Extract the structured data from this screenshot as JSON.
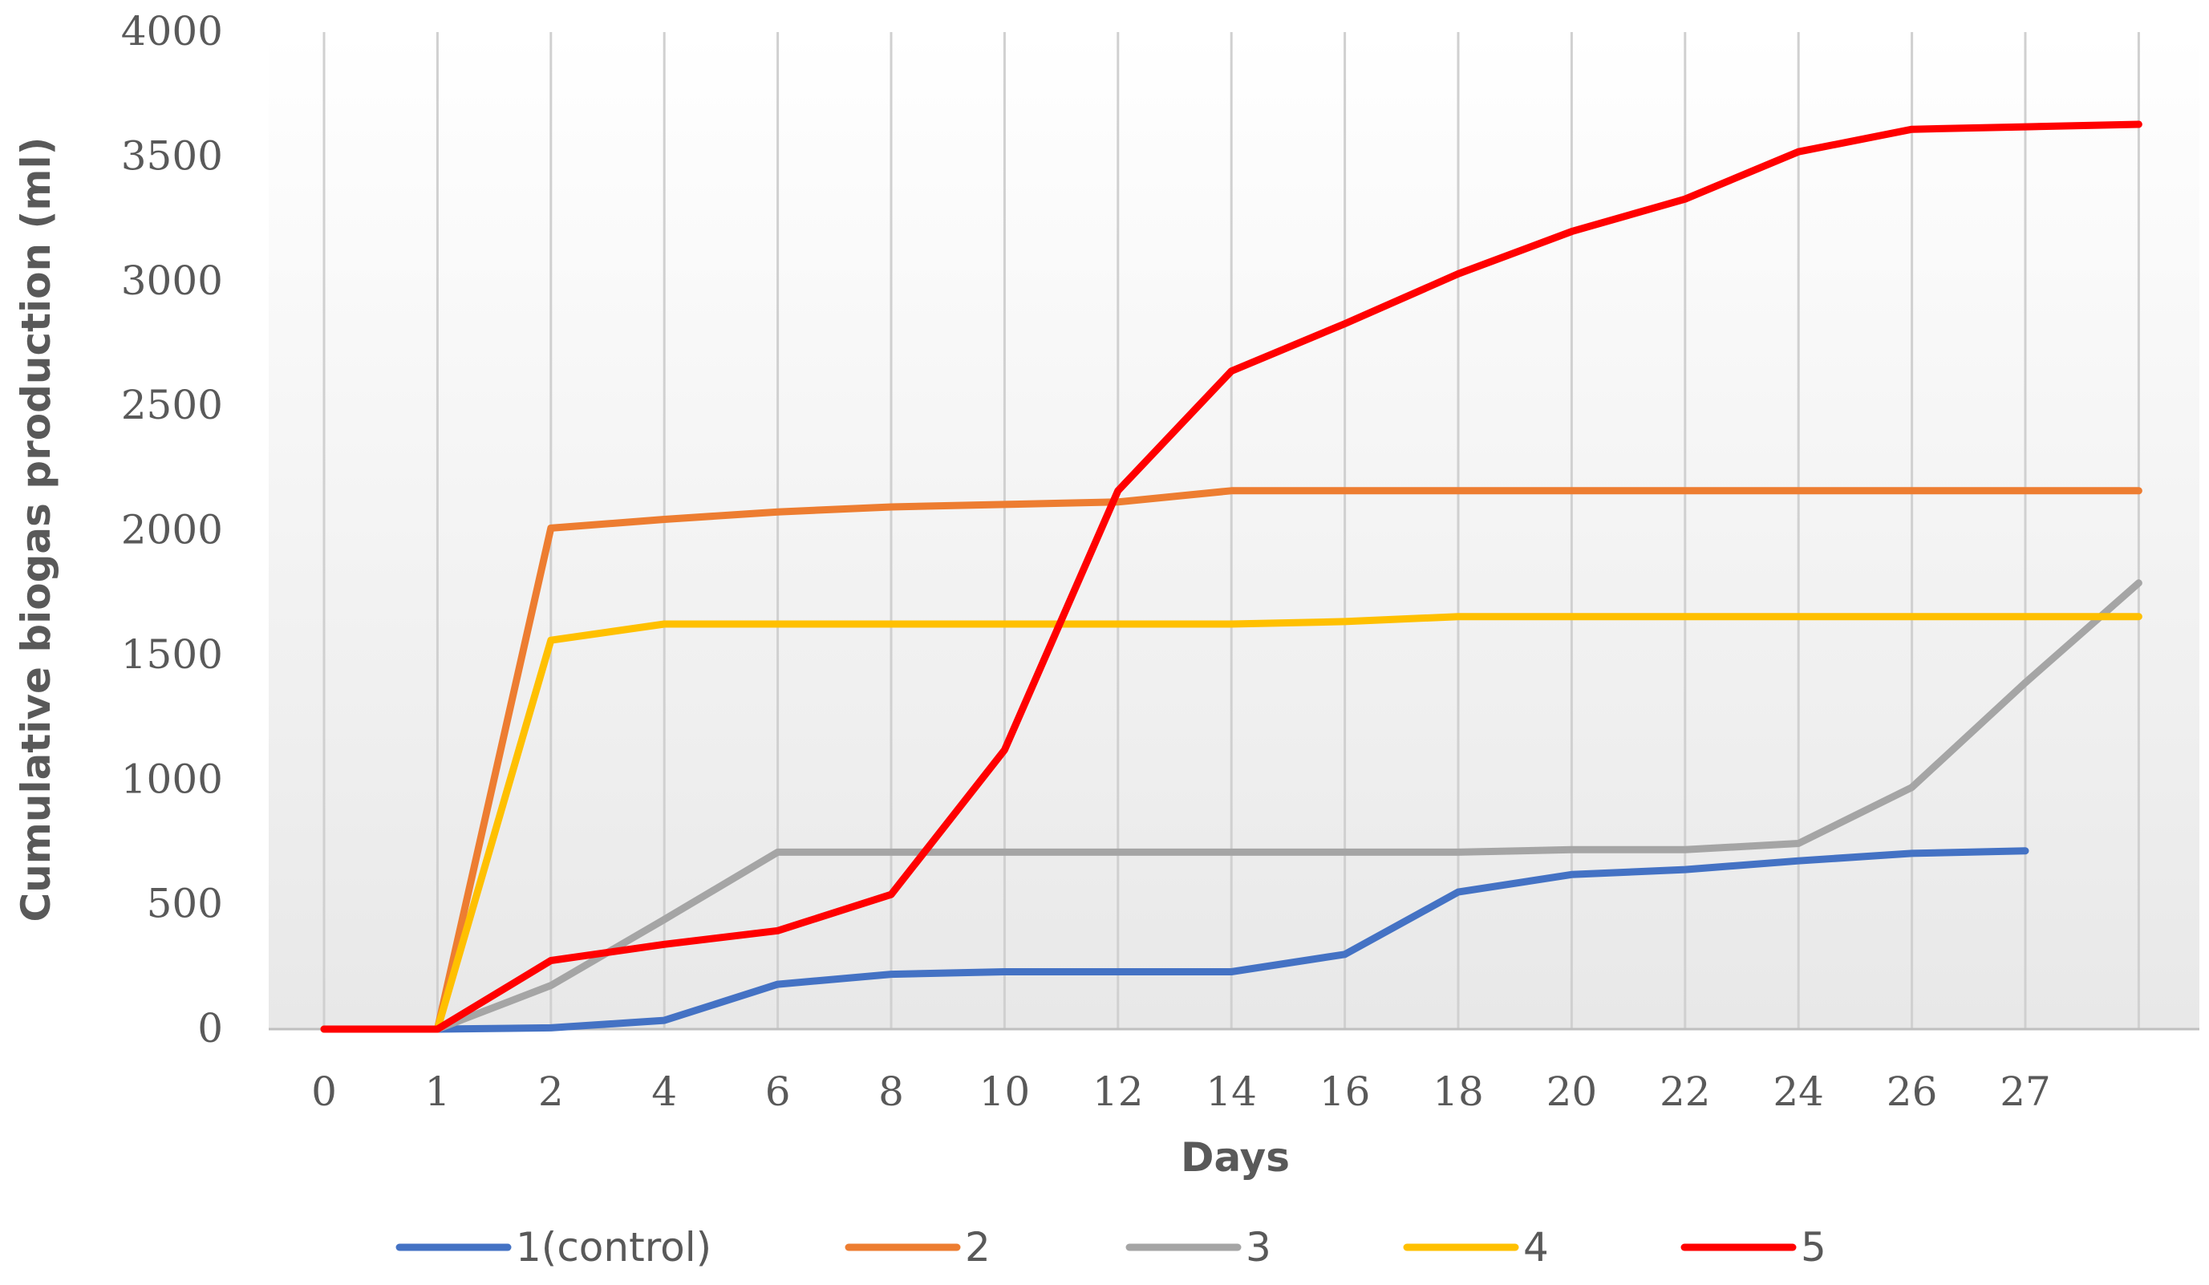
{
  "chart_data": {
    "type": "line",
    "title": "",
    "xlabel": "Days",
    "ylabel": "Cumulative biogas production (ml)",
    "categories": [
      "0",
      "1",
      "2",
      "4",
      "6",
      "8",
      "10",
      "12",
      "14",
      "16",
      "18",
      "20",
      "22",
      "24",
      "26",
      "27",
      ""
    ],
    "ylim": [
      0,
      4000
    ],
    "yticks": [
      0,
      500,
      1000,
      1500,
      2000,
      2500,
      3000,
      3500,
      4000
    ],
    "grid": "vertical",
    "legend": "bottom",
    "series": [
      {
        "name": "1(control)",
        "color": "#4472C4",
        "values": [
          0,
          0,
          5,
          35,
          180,
          220,
          230,
          230,
          230,
          300,
          550,
          620,
          640,
          675,
          705,
          715,
          null
        ]
      },
      {
        "name": "2",
        "color": "#ED7D31",
        "values": [
          0,
          0,
          2010,
          2045,
          2075,
          2095,
          2105,
          2115,
          2160,
          2160,
          2160,
          2160,
          2160,
          2160,
          2160,
          2160,
          2160
        ]
      },
      {
        "name": "3",
        "color": "#A5A5A5",
        "values": [
          0,
          0,
          175,
          440,
          710,
          710,
          710,
          710,
          710,
          710,
          710,
          720,
          720,
          745,
          970,
          1390,
          1790
        ]
      },
      {
        "name": "4",
        "color": "#FFC000",
        "values": [
          0,
          0,
          1560,
          1625,
          1625,
          1625,
          1625,
          1625,
          1625,
          1635,
          1655,
          1655,
          1655,
          1655,
          1655,
          1655,
          1655
        ]
      },
      {
        "name": "5",
        "color": "#FF0000",
        "values": [
          0,
          0,
          275,
          340,
          395,
          540,
          1120,
          2160,
          2640,
          2830,
          3030,
          3200,
          3330,
          3520,
          3610,
          3620,
          3630
        ]
      }
    ]
  }
}
